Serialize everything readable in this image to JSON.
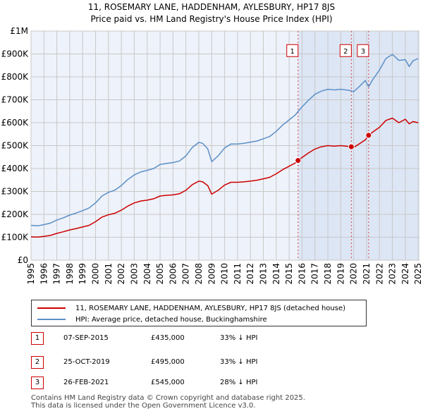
{
  "chart_data": {
    "type": "line",
    "title": "11, ROSEMARY LANE, HADDENHAM, AYLESBURY, HP17 8JS",
    "subtitle": "Price paid vs. HM Land Registry's House Price Index (HPI)",
    "x_ticks": [
      "1995",
      "1996",
      "1997",
      "1998",
      "1999",
      "2000",
      "2001",
      "2002",
      "2003",
      "2004",
      "2005",
      "2006",
      "2007",
      "2008",
      "2009",
      "2010",
      "2011",
      "2012",
      "2013",
      "2014",
      "2015",
      "2016",
      "2017",
      "2018",
      "2019",
      "2020",
      "2021",
      "2022",
      "2023",
      "2024",
      "2025"
    ],
    "xlim": [
      1995,
      2025.1
    ],
    "ylim": [
      0,
      1000000
    ],
    "y_ticks": [
      {
        "value": 0,
        "label": "£0"
      },
      {
        "value": 100000,
        "label": "£100K"
      },
      {
        "value": 200000,
        "label": "£200K"
      },
      {
        "value": 300000,
        "label": "£300K"
      },
      {
        "value": 400000,
        "label": "£400K"
      },
      {
        "value": 500000,
        "label": "£500K"
      },
      {
        "value": 600000,
        "label": "£600K"
      },
      {
        "value": 700000,
        "label": "£700K"
      },
      {
        "value": 800000,
        "label": "£800K"
      },
      {
        "value": 900000,
        "label": "£900K"
      },
      {
        "value": 1000000,
        "label": "£1M"
      }
    ],
    "grid": true,
    "series": [
      {
        "name": "11, ROSEMARY LANE, HADDENHAM, AYLESBURY, HP17 8JS (detached house)",
        "color": "#cc0000",
        "x": [
          1995.0,
          1995.5,
          1996.0,
          1996.5,
          1997.0,
          1997.5,
          1998.0,
          1998.5,
          1999.0,
          1999.5,
          2000.0,
          2000.5,
          2001.0,
          2001.5,
          2002.0,
          2002.5,
          2003.0,
          2003.5,
          2004.0,
          2004.5,
          2005.0,
          2005.5,
          2006.0,
          2006.5,
          2007.0,
          2007.5,
          2008.0,
          2008.3,
          2008.7,
          2009.0,
          2009.5,
          2010.0,
          2010.5,
          2011.0,
          2011.5,
          2012.0,
          2012.5,
          2013.0,
          2013.5,
          2014.0,
          2014.5,
          2015.0,
          2015.5,
          2015.69,
          2016.0,
          2016.5,
          2017.0,
          2017.5,
          2018.0,
          2018.5,
          2019.0,
          2019.5,
          2019.82,
          2020.0,
          2020.5,
          2020.9,
          2021.16,
          2021.5,
          2022.0,
          2022.5,
          2023.0,
          2023.5,
          2024.0,
          2024.3,
          2024.6,
          2025.0
        ],
        "y": [
          102000,
          101000,
          104000,
          108000,
          117000,
          124000,
          132000,
          138000,
          145000,
          152000,
          168000,
          188000,
          198000,
          205000,
          218000,
          236000,
          250000,
          258000,
          262000,
          268000,
          280000,
          283000,
          285000,
          290000,
          305000,
          330000,
          345000,
          342000,
          325000,
          288000,
          305000,
          328000,
          340000,
          340000,
          342000,
          345000,
          349000,
          355000,
          362000,
          377000,
          395000,
          410000,
          425000,
          435000,
          448000,
          468000,
          485000,
          495000,
          500000,
          498000,
          500000,
          497000,
          495000,
          492000,
          510000,
          525000,
          545000,
          560000,
          580000,
          610000,
          620000,
          600000,
          615000,
          595000,
          605000,
          600000
        ]
      },
      {
        "name": "HPI: Average price, detached house, Buckinghamshire",
        "color": "#5b8fc7",
        "x": [
          1995.0,
          1995.5,
          1996.0,
          1996.5,
          1997.0,
          1997.5,
          1998.0,
          1998.5,
          1999.0,
          1999.5,
          2000.0,
          2000.5,
          2001.0,
          2001.5,
          2002.0,
          2002.5,
          2003.0,
          2003.5,
          2004.0,
          2004.5,
          2005.0,
          2005.5,
          2006.0,
          2006.5,
          2007.0,
          2007.5,
          2008.0,
          2008.3,
          2008.7,
          2009.0,
          2009.5,
          2010.0,
          2010.5,
          2011.0,
          2011.5,
          2012.0,
          2012.5,
          2013.0,
          2013.5,
          2014.0,
          2014.5,
          2015.0,
          2015.5,
          2015.69,
          2016.0,
          2016.5,
          2017.0,
          2017.5,
          2018.0,
          2018.5,
          2019.0,
          2019.5,
          2019.82,
          2020.0,
          2020.5,
          2020.9,
          2021.16,
          2021.5,
          2022.0,
          2022.5,
          2023.0,
          2023.5,
          2024.0,
          2024.3,
          2024.6,
          2025.0
        ],
        "y": [
          152000,
          150000,
          155000,
          162000,
          175000,
          185000,
          197000,
          206000,
          216000,
          228000,
          250000,
          280000,
          296000,
          306000,
          326000,
          352000,
          372000,
          385000,
          392000,
          400000,
          418000,
          422000,
          426000,
          433000,
          455000,
          492000,
          514000,
          510000,
          485000,
          430000,
          455000,
          490000,
          507000,
          507000,
          510000,
          515000,
          520000,
          530000,
          540000,
          562000,
          590000,
          612000,
          635000,
          649000,
          669000,
          698000,
          724000,
          738000,
          746000,
          743000,
          746000,
          742000,
          739000,
          735000,
          761000,
          784000,
          757000,
          790000,
          830000,
          880000,
          898000,
          872000,
          875000,
          845000,
          870000,
          880000
        ]
      }
    ],
    "transactions": [
      {
        "label": "1",
        "x": 2015.69,
        "y": 435000,
        "date": "07-SEP-2015",
        "price": "£435,000",
        "hpi": "33% ↓ HPI"
      },
      {
        "label": "2",
        "x": 2019.82,
        "y": 495000,
        "date": "25-OCT-2019",
        "price": "£495,000",
        "hpi": "33% ↓ HPI"
      },
      {
        "label": "3",
        "x": 2021.16,
        "y": 545000,
        "date": "26-FEB-2021",
        "price": "£545,000",
        "hpi": "28% ↓ HPI"
      }
    ]
  },
  "colors": {
    "price_line": "#cc0000",
    "hpi_line": "#5b8fc7",
    "shade": "#dde6f5",
    "grid": "#c8c8c8",
    "plot_bg": "#eef2fa"
  },
  "footer": {
    "line1": "Contains HM Land Registry data © Crown copyright and database right 2025.",
    "line2": "This data is licensed under the Open Government Licence v3.0."
  }
}
